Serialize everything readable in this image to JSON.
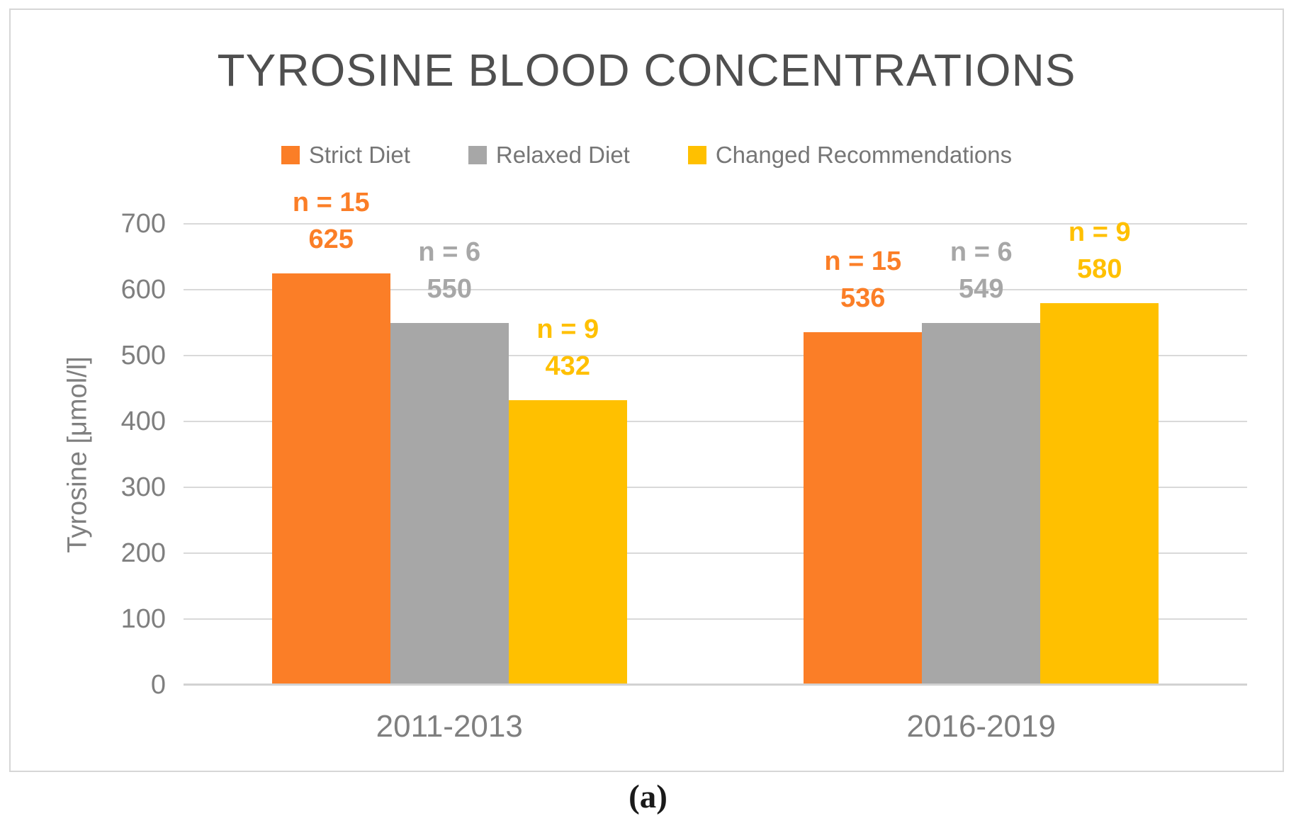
{
  "figure": {
    "caption": "(a)"
  },
  "chart_data": {
    "type": "bar",
    "title": "TYROSINE BLOOD CONCENTRATIONS",
    "ylabel": "Tyrosine [μmol/l]",
    "xlabel": "",
    "ylim": [
      0,
      700
    ],
    "yticks": [
      0,
      100,
      200,
      300,
      400,
      500,
      600,
      700
    ],
    "grid": true,
    "legend_position": "top-center",
    "categories": [
      "2011-2013",
      "2016-2019"
    ],
    "series": [
      {
        "name": "Strict Diet",
        "color": "#FB7E27",
        "values": [
          625,
          536
        ],
        "point_labels": [
          [
            "n = 15",
            "625"
          ],
          [
            "n = 15",
            "536"
          ]
        ]
      },
      {
        "name": "Relaxed Diet",
        "color": "#A7A7A7",
        "values": [
          550,
          549
        ],
        "point_labels": [
          [
            "n = 6",
            "550"
          ],
          [
            "n = 6",
            "549"
          ]
        ]
      },
      {
        "name": "Changed Recommendations",
        "color": "#FFC000",
        "values": [
          432,
          580
        ],
        "point_labels": [
          [
            "n = 9",
            "432"
          ],
          [
            "n = 9",
            "580"
          ]
        ]
      }
    ],
    "colors": {
      "gridline": "#D9D9D9",
      "axis_line": "#D2D2D2",
      "tick_text": "#7F7F7F",
      "title_text": "#4F4F4F"
    }
  }
}
